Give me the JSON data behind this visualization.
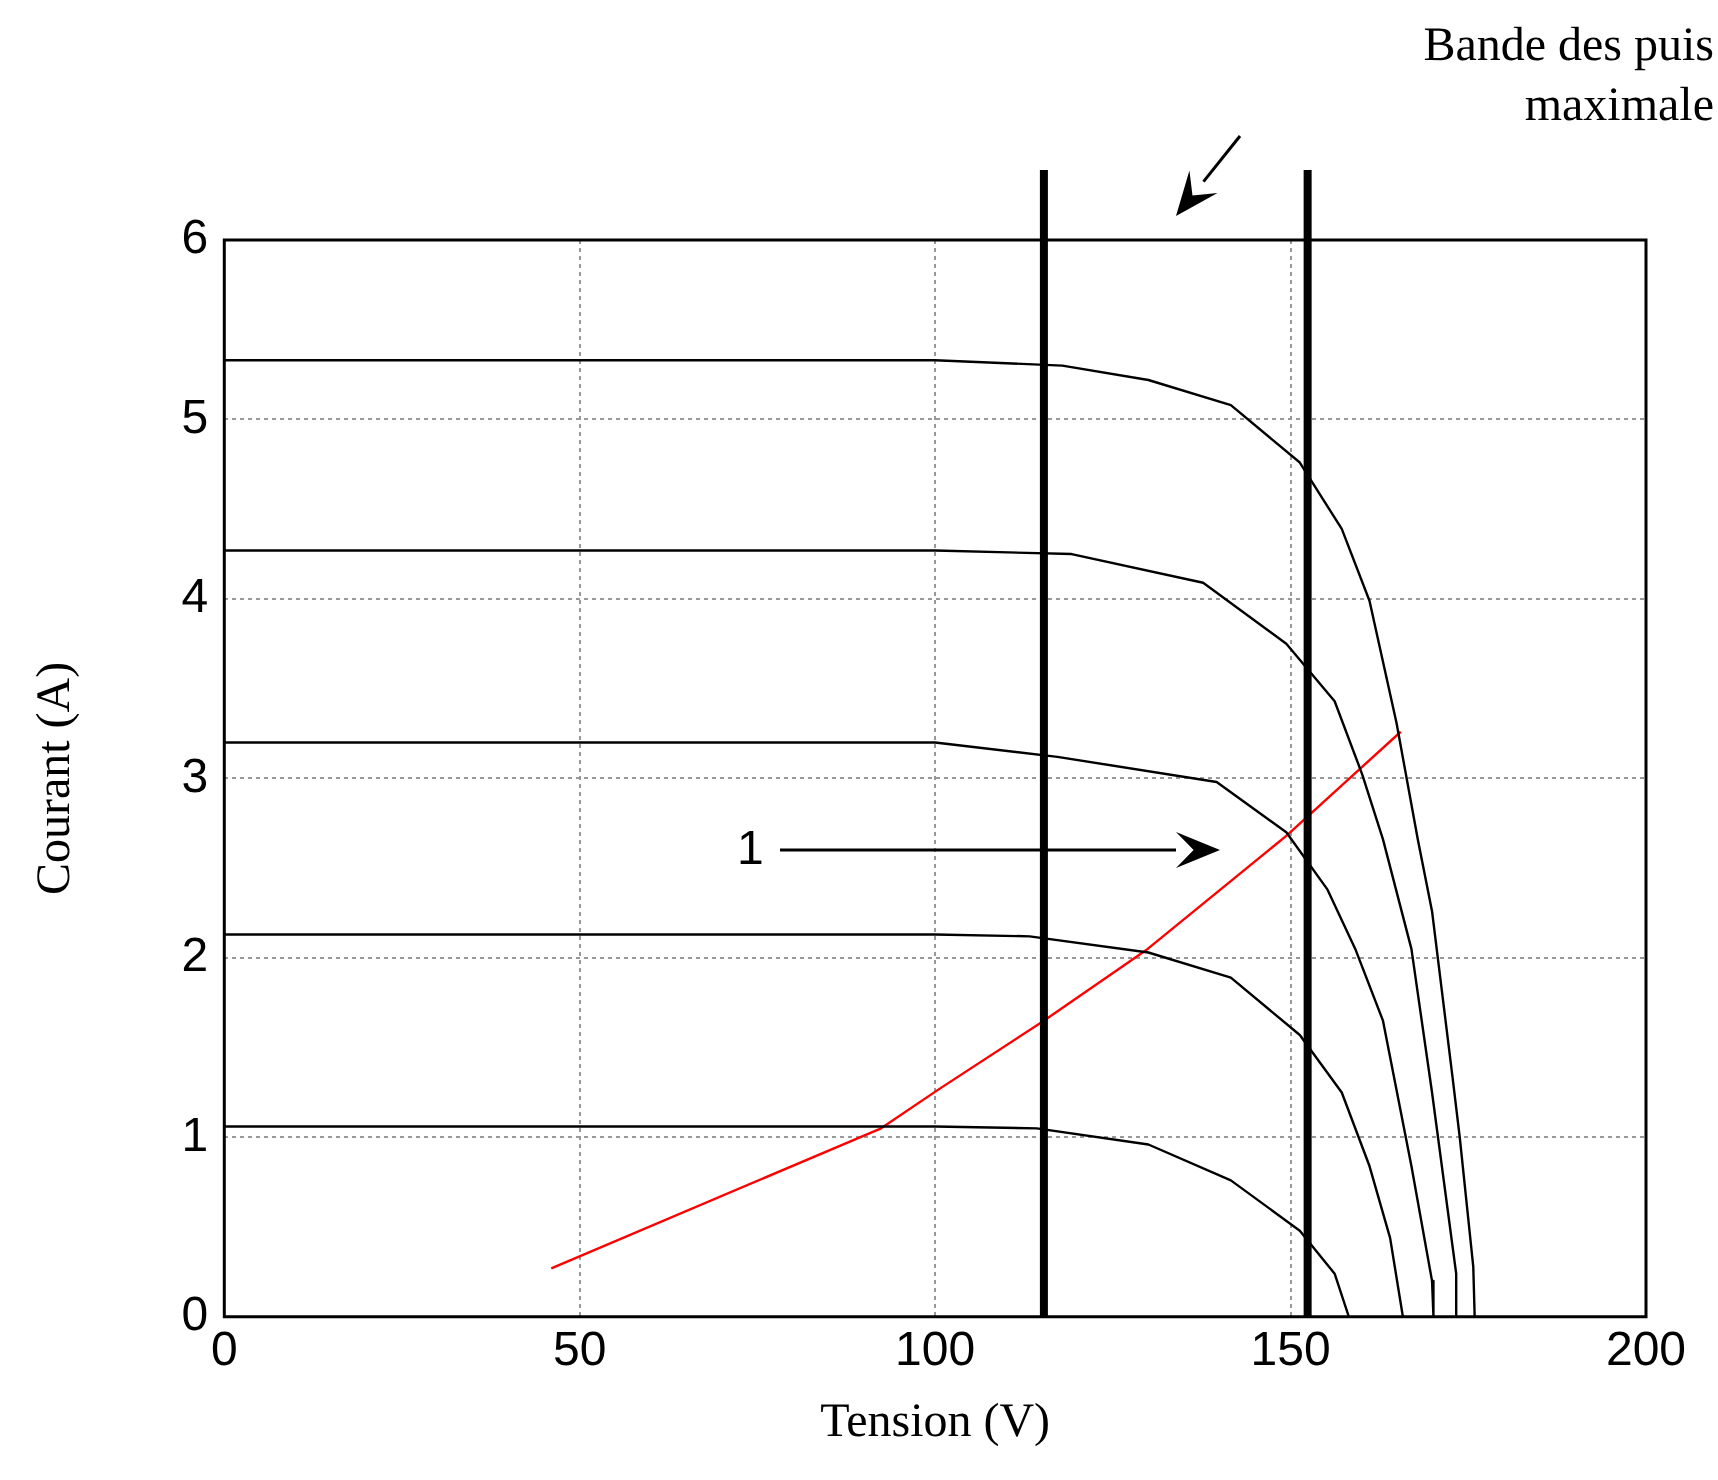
{
  "chart_data": {
    "type": "line",
    "xlabel": "Tension (V)",
    "ylabel": "Courant (A)",
    "xlim": [
      0,
      200
    ],
    "xticks": [
      0,
      50,
      100,
      150,
      200
    ],
    "ylim": [
      0,
      6
    ],
    "yticks": [
      0,
      1,
      2,
      3,
      4,
      5,
      6
    ],
    "grid": true,
    "legend": false,
    "marker": "none",
    "line_style": "solid",
    "series": [
      {
        "color": "#000000",
        "x": [
          0,
          100,
          117.9,
          130,
          141.6,
          151.3,
          157.2,
          161.1,
          164.9,
          167.9,
          169.9,
          172.8,
          173.8,
          175.7,
          175.9
        ],
        "values": [
          5.33,
          5.33,
          5.3,
          5.22,
          5.08,
          4.76,
          4.39,
          3.99,
          3.31,
          2.66,
          2.26,
          1.33,
          1.0,
          0.28,
          0
        ]
      },
      {
        "color": "#000000",
        "x": [
          0,
          100,
          119.2,
          137.7,
          149.4,
          156.2,
          160.1,
          163.0,
          167.0,
          169.9,
          173.3,
          173.3
        ],
        "values": [
          4.27,
          4.27,
          4.25,
          4.09,
          3.75,
          3.43,
          3.02,
          2.66,
          2.05,
          1.25,
          0.24,
          0
        ]
      },
      {
        "color": "#000000",
        "x": [
          0,
          100,
          117.2,
          139.6,
          149.4,
          155.2,
          159.1,
          163.0,
          167.0,
          169.9,
          170.1
        ],
        "values": [
          3.2,
          3.2,
          3.12,
          2.98,
          2.7,
          2.38,
          2.05,
          1.65,
          0.84,
          0.2,
          0
        ]
      },
      {
        "color": "#000000",
        "x": [
          0,
          100,
          113.3,
          130,
          141.6,
          151.3,
          157.2,
          161.1,
          164.0,
          165.8
        ],
        "values": [
          2.13,
          2.13,
          2.12,
          2.03,
          1.89,
          1.57,
          1.25,
          0.84,
          0.44,
          0
        ]
      },
      {
        "color": "#000000",
        "x": [
          0,
          100,
          114.3,
          130,
          141.6,
          151.3,
          156.2,
          158.2
        ],
        "values": [
          1.06,
          1.06,
          1.05,
          0.96,
          0.76,
          0.48,
          0.24,
          0
        ]
      },
      {
        "color": "#ff0000",
        "x": [
          46.0,
          92.4,
          100.6,
          115.3,
          129.9,
          149.4,
          165.5
        ],
        "values": [
          0.27,
          1.05,
          1.27,
          1.65,
          2.05,
          2.68,
          3.26
        ]
      }
    ],
    "ref_lines": [
      {
        "axis": "x",
        "value": 115.3,
        "color": "#000000"
      },
      {
        "axis": "x",
        "value": 152.4,
        "color": "#000000"
      }
    ],
    "annotations": [
      "Bande des puis\nmaximale",
      "1"
    ]
  }
}
